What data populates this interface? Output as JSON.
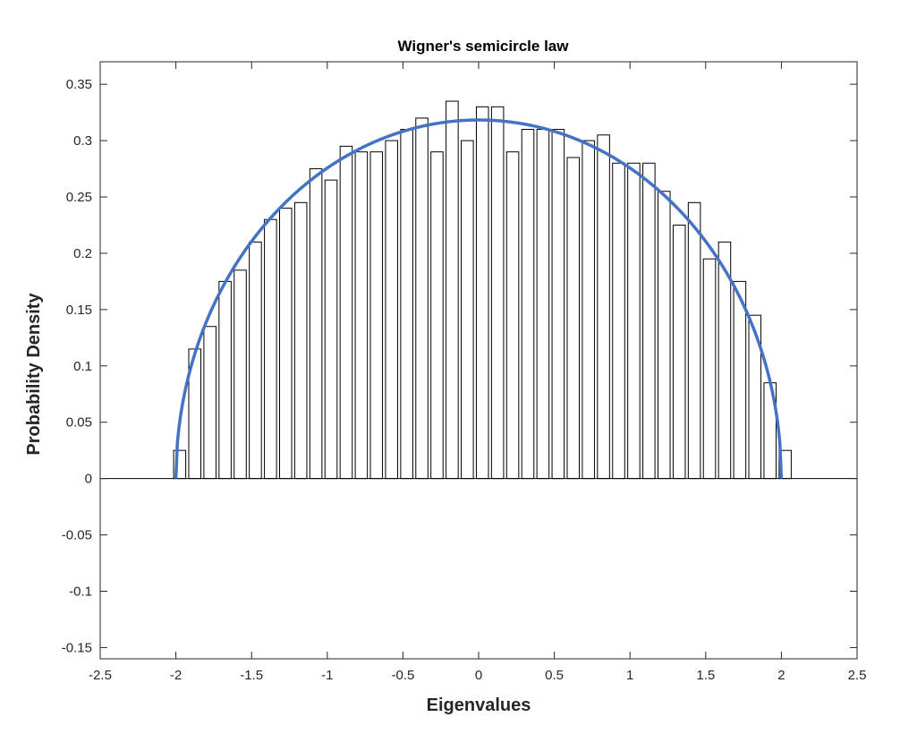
{
  "chart_data": {
    "type": "bar",
    "title": "Wigner's semicircle law",
    "xlabel": "Eigenvalues",
    "ylabel": "Probability Density",
    "xlim": [
      -2.5,
      2.5
    ],
    "ylim": [
      -0.16,
      0.37
    ],
    "xticks": [
      -2.5,
      -2,
      -1.5,
      -1,
      -0.5,
      0,
      0.5,
      1,
      1.5,
      2,
      2.5
    ],
    "xtick_labels": [
      "-2.5",
      "-2",
      "-1.5",
      "-1",
      "-0.5",
      "0",
      "0.5",
      "1",
      "1.5",
      "2",
      "2.5"
    ],
    "yticks": [
      -0.15,
      -0.1,
      -0.05,
      0,
      0.05,
      0.1,
      0.15,
      0.2,
      0.25,
      0.3,
      0.35
    ],
    "ytick_labels": [
      "-0.15",
      "-0.1",
      "-0.05",
      "0",
      "0.05",
      "0.1",
      "0.15",
      "0.2",
      "0.25",
      "0.3",
      "0.35"
    ],
    "grid": false,
    "legend": null,
    "histogram": {
      "bin_width": 0.1,
      "bin_centers": [
        -1.975,
        -1.875,
        -1.775,
        -1.675,
        -1.575,
        -1.475,
        -1.375,
        -1.275,
        -1.175,
        -1.075,
        -0.975,
        -0.875,
        -0.775,
        -0.675,
        -0.575,
        -0.475,
        -0.375,
        -0.275,
        -0.175,
        -0.075,
        0.025,
        0.125,
        0.225,
        0.325,
        0.425,
        0.525,
        0.625,
        0.725,
        0.825,
        0.925,
        1.025,
        1.125,
        1.225,
        1.325,
        1.425,
        1.525,
        1.625,
        1.725,
        1.825,
        1.925,
        2.025
      ],
      "values": [
        0.025,
        0.115,
        0.135,
        0.175,
        0.185,
        0.21,
        0.23,
        0.24,
        0.245,
        0.275,
        0.265,
        0.295,
        0.29,
        0.29,
        0.3,
        0.31,
        0.32,
        0.29,
        0.335,
        0.3,
        0.33,
        0.33,
        0.29,
        0.31,
        0.31,
        0.31,
        0.285,
        0.3,
        0.305,
        0.28,
        0.28,
        0.28,
        0.255,
        0.225,
        0.245,
        0.195,
        0.21,
        0.175,
        0.145,
        0.085,
        0.025
      ],
      "fill_color": "#ffffff",
      "edge_color": "#000000"
    },
    "curve": {
      "function": "semicircle",
      "x_range": [
        -2,
        2
      ],
      "radius": 2,
      "color": "#4472C4"
    }
  }
}
